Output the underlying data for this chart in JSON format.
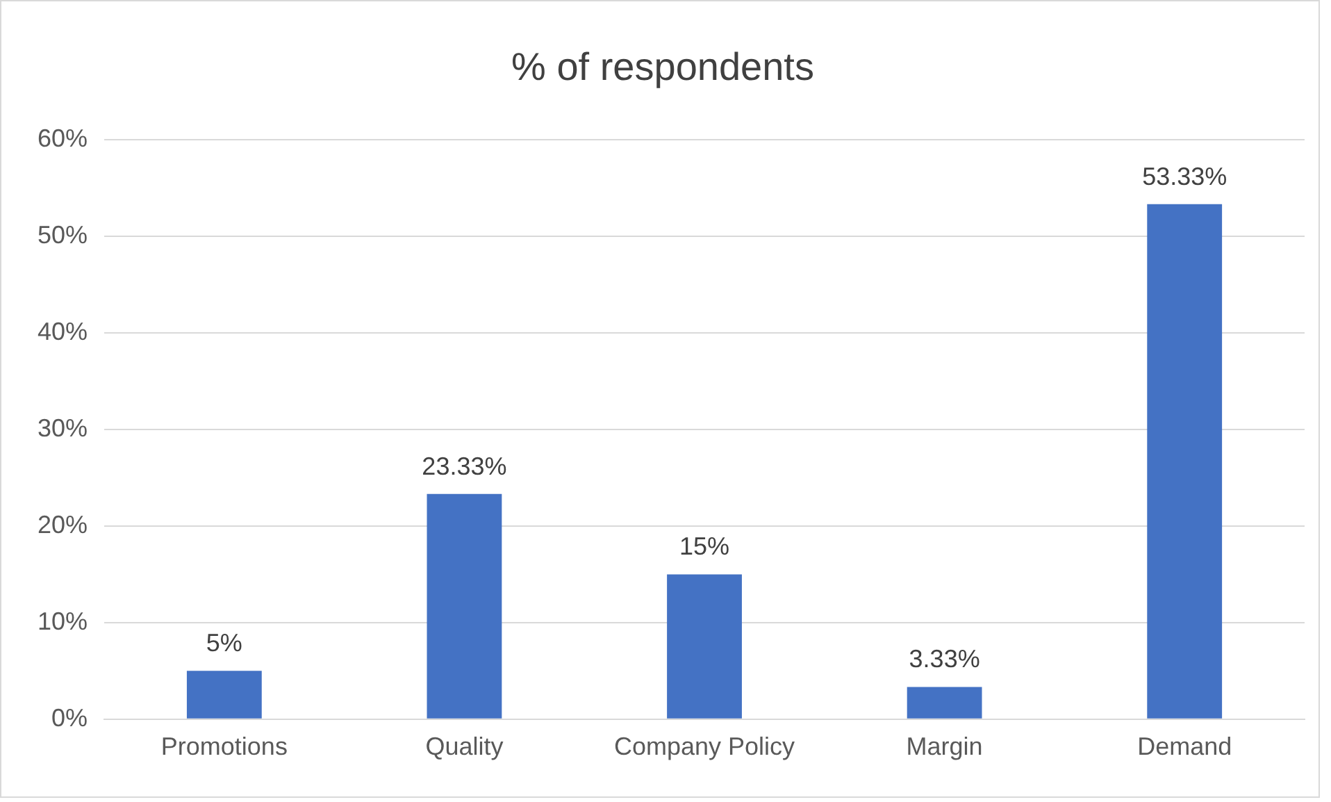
{
  "chart_data": {
    "type": "bar",
    "title": "% of respondents",
    "categories": [
      "Promotions",
      "Quality",
      "Company Policy",
      "Margin",
      "Demand"
    ],
    "values": [
      5,
      23.33,
      15,
      3.33,
      53.33
    ],
    "value_labels": [
      "5%",
      "23.33%",
      "15%",
      "3.33%",
      "53.33%"
    ],
    "color": "#4472c4",
    "ylim": [
      0,
      60
    ],
    "yticks": [
      {
        "value": 0,
        "label": "0%"
      },
      {
        "value": 10,
        "label": "10%"
      },
      {
        "value": 20,
        "label": "20%"
      },
      {
        "value": 30,
        "label": "30%"
      },
      {
        "value": 40,
        "label": "40%"
      },
      {
        "value": 50,
        "label": "50%"
      },
      {
        "value": 60,
        "label": "60%"
      }
    ],
    "grid": "y",
    "legend": false
  }
}
